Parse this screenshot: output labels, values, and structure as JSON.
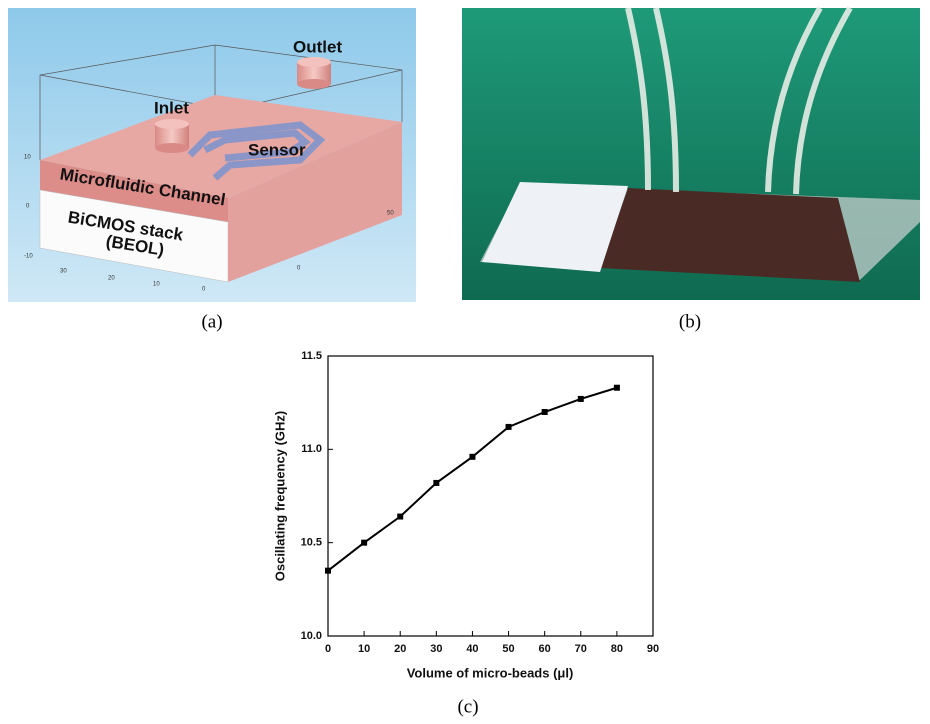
{
  "panel_a": {
    "labels": [
      "Outlet",
      "Inlet",
      "Sensor",
      "Microfluidic Channel",
      "BiCMOS stack",
      "(BEOL)"
    ],
    "axis_numbers": [
      "10",
      "0",
      "-10",
      "30",
      "20",
      "10",
      "0",
      "50",
      "0"
    ],
    "caption": "(a)"
  },
  "panel_b": {
    "caption": "(b)"
  },
  "panel_c": {
    "caption": "(c)"
  },
  "chart_data": {
    "type": "line",
    "x_label": "Volume of micro-beads (μl)",
    "y_label": "Oscillating frequency (GHz)",
    "x": [
      0,
      10,
      20,
      30,
      40,
      50,
      60,
      70,
      80
    ],
    "series": [
      {
        "color": "#000000",
        "values": [
          10.35,
          10.5,
          10.64,
          10.82,
          10.96,
          11.12,
          11.2,
          11.27,
          11.33
        ]
      }
    ],
    "xlim": [
      0,
      90
    ],
    "xticks": [
      0,
      10,
      20,
      30,
      40,
      50,
      60,
      70,
      80,
      90
    ],
    "ylim": [
      10.0,
      11.5
    ],
    "yticks": [
      {
        "value": 10.0,
        "label": "10.0"
      },
      {
        "value": 10.5,
        "label": "10.5"
      },
      {
        "value": 11.0,
        "label": "11.0"
      },
      {
        "value": 11.5,
        "label": "11.5"
      }
    ],
    "grid": false
  }
}
